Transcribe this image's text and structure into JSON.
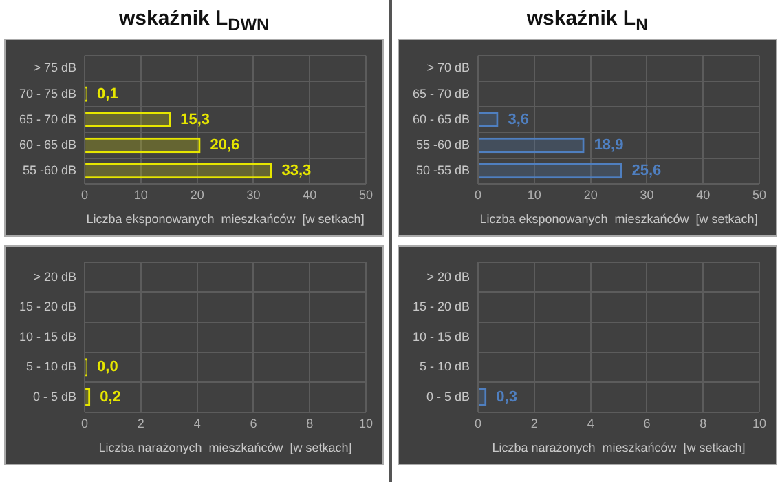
{
  "chart_data": [
    {
      "type": "bar",
      "title": "wskaźnik L$_{DWN}$",
      "orientation": "horizontal",
      "categories": [
        "> 75 dB",
        "70 - 75 dB",
        "65 - 70 dB",
        "60 - 65 dB",
        "55 -60 dB"
      ],
      "values": [
        null,
        0.1,
        15.3,
        20.6,
        33.3
      ],
      "value_labels": [
        null,
        "0,1",
        "15,3",
        "20,6",
        "33,3"
      ],
      "color": "#e6e600",
      "xlim": [
        0,
        50
      ],
      "xticks": [
        0,
        10,
        20,
        30,
        40,
        50
      ],
      "xlabel": "Liczba eksponowanych  mieszkańców  [w setkach]",
      "grid": true
    },
    {
      "type": "bar",
      "title": "wskaźnik L$_{N}$",
      "orientation": "horizontal",
      "categories": [
        "> 70 dB",
        "65 - 70 dB",
        "60 - 65 dB",
        "55 -60 dB",
        "50 -55 dB"
      ],
      "values": [
        null,
        null,
        3.6,
        18.9,
        25.6
      ],
      "value_labels": [
        null,
        null,
        "3,6",
        "18,9",
        "25,6"
      ],
      "color": "#4f7fc0",
      "xlim": [
        0,
        50
      ],
      "xticks": [
        0,
        10,
        20,
        30,
        40,
        50
      ],
      "xlabel": "Liczba eksponowanych  mieszkańców  [w setkach]",
      "grid": true
    },
    {
      "type": "bar",
      "orientation": "horizontal",
      "categories": [
        "> 20 dB",
        "15 - 20 dB",
        "10 - 15 dB",
        "5 - 10 dB",
        "0 - 5 dB"
      ],
      "values": [
        null,
        null,
        null,
        0.0,
        0.2
      ],
      "value_labels": [
        null,
        null,
        null,
        "0,0",
        "0,2"
      ],
      "color": "#e6e600",
      "xlim": [
        0,
        10
      ],
      "xticks": [
        0,
        2,
        4,
        6,
        8,
        10
      ],
      "xlabel": "Liczba narażonych  mieszkańców  [w setkach]",
      "grid": true
    },
    {
      "type": "bar",
      "orientation": "horizontal",
      "categories": [
        "> 20 dB",
        "15 - 20 dB",
        "10 - 15 dB",
        "5 - 10 dB",
        "0 - 5 dB"
      ],
      "values": [
        null,
        null,
        null,
        null,
        0.3
      ],
      "value_labels": [
        null,
        null,
        null,
        null,
        "0,3"
      ],
      "color": "#4f7fc0",
      "xlim": [
        0,
        10
      ],
      "xticks": [
        0,
        2,
        4,
        6,
        8,
        10
      ],
      "xlabel": "Liczba narażonych  mieszkańców  [w setkach]",
      "grid": true
    }
  ]
}
